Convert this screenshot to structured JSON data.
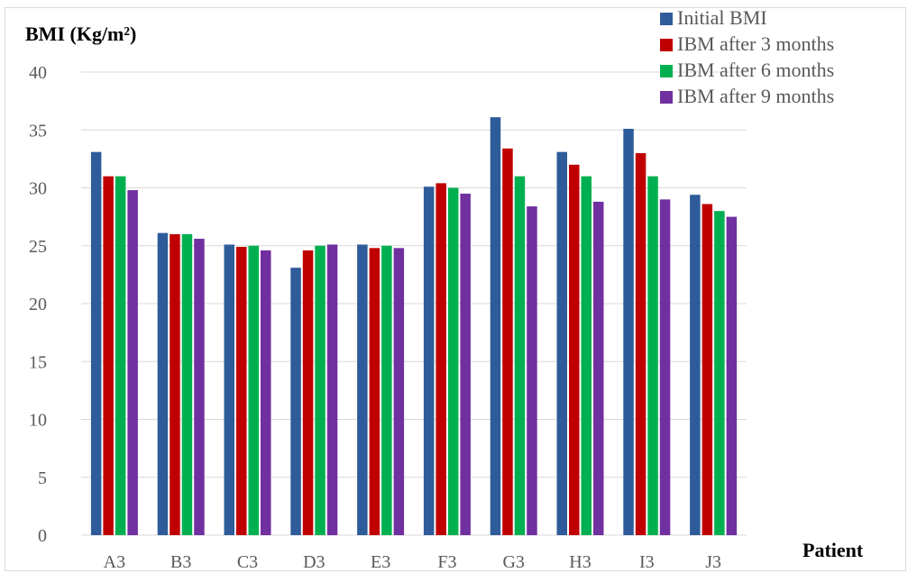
{
  "chart_data": {
    "type": "bar",
    "ylabel": "BMI (Kg/m²)",
    "xlabel": "Patient",
    "categories": [
      "A3",
      "B3",
      "C3",
      "D3",
      "E3",
      "F3",
      "G3",
      "H3",
      "I3",
      "J3"
    ],
    "ylim": [
      0,
      40
    ],
    "yticks": [
      0,
      5,
      10,
      15,
      20,
      25,
      30,
      35,
      40
    ],
    "grid": true,
    "legend_position": "top-right",
    "series": [
      {
        "name": "Initial BMI",
        "color": "#2e5c9a",
        "values": [
          33.1,
          26.1,
          25.1,
          23.1,
          25.1,
          30.1,
          36.1,
          33.1,
          35.1,
          29.4
        ]
      },
      {
        "name": "IBM after 3 months",
        "color": "#c00000",
        "values": [
          31.0,
          26.0,
          24.9,
          24.6,
          24.8,
          30.4,
          33.4,
          32.0,
          33.0,
          28.6
        ]
      },
      {
        "name": "IBM after 6 months",
        "color": "#00b050",
        "values": [
          31.0,
          26.0,
          25.0,
          25.0,
          25.0,
          30.0,
          31.0,
          31.0,
          31.0,
          28.0
        ]
      },
      {
        "name": "IBM after 9 months",
        "color": "#7030a0",
        "values": [
          29.8,
          25.6,
          24.6,
          25.1,
          24.8,
          29.5,
          28.4,
          28.8,
          29.0,
          27.5
        ]
      }
    ]
  }
}
